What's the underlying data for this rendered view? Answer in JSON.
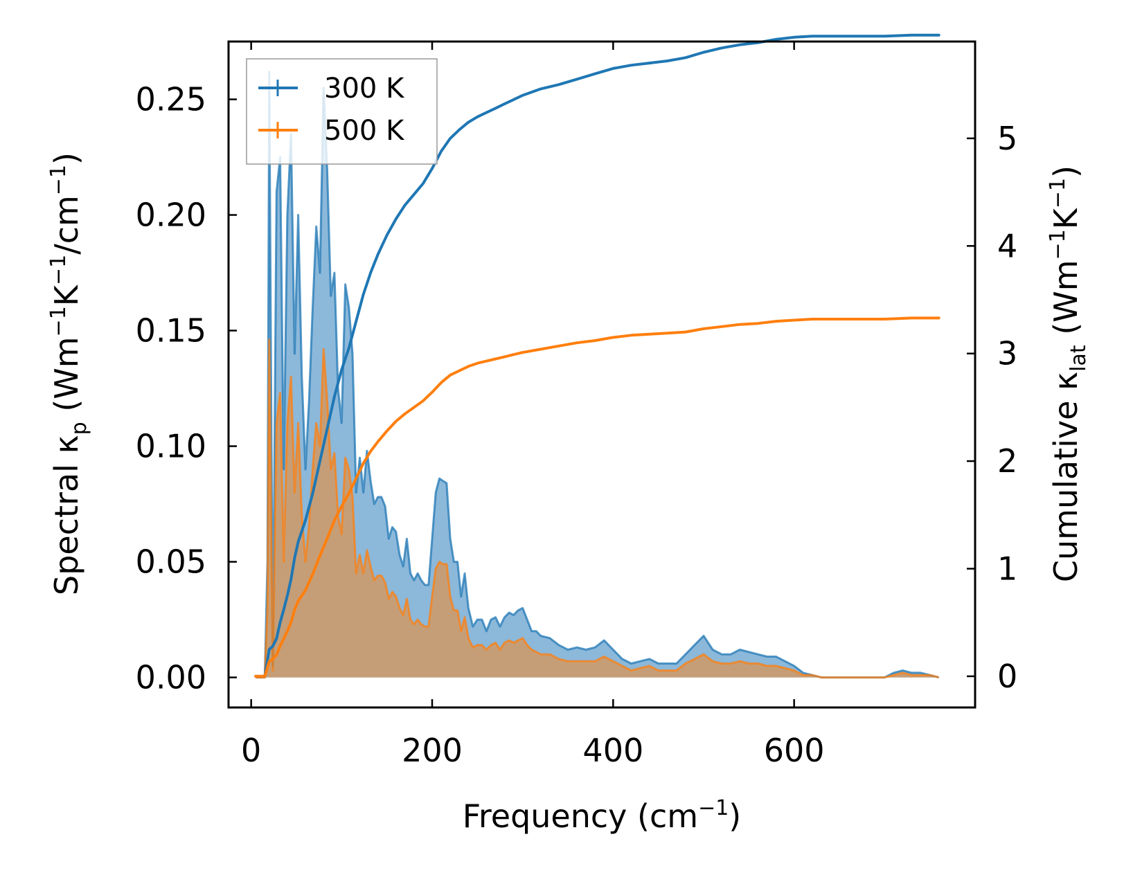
{
  "chart_data": {
    "type": "line",
    "title": "",
    "xlabel": "Frequency (cm⁻¹)",
    "ylabel_left": "Spectral κᵨ (Wm⁻¹K⁻¹/cm⁻¹)",
    "ylabel_right": "Cumulative κₗₐₜ (Wm⁻¹K⁻¹)",
    "xlim": [
      -25,
      800
    ],
    "ylim_left": [
      -0.013,
      0.275
    ],
    "ylim_right": [
      -0.29,
      5.9
    ],
    "x_ticks": [
      0,
      200,
      400,
      600
    ],
    "x_tick_labels": [
      "0",
      "200",
      "400",
      "600"
    ],
    "y_left_ticks": [
      0,
      0.05,
      0.1,
      0.15,
      0.2,
      0.25
    ],
    "y_left_tick_labels": [
      "0.00",
      "0.05",
      "0.10",
      "0.15",
      "0.20",
      "0.25"
    ],
    "y_right_ticks": [
      0,
      1,
      2,
      3,
      4,
      5
    ],
    "y_right_tick_labels": [
      "0",
      "1",
      "2",
      "3",
      "4",
      "5"
    ],
    "legend": {
      "position": "top-left",
      "entries": [
        "300 K",
        "500 K"
      ]
    },
    "colors": {
      "300 K": "#1f77b4",
      "500 K": "#ff7f0e",
      "fill_300": "#7fb0d6",
      "fill_500": "#c89c72"
    },
    "series": [
      {
        "name": "300 K",
        "axis": "left",
        "kind": "spectral",
        "x": [
          5,
          15,
          18,
          20,
          22,
          24,
          28,
          32,
          36,
          40,
          44,
          48,
          52,
          56,
          60,
          64,
          68,
          72,
          76,
          80,
          84,
          88,
          92,
          96,
          100,
          104,
          108,
          112,
          116,
          120,
          124,
          128,
          132,
          136,
          140,
          144,
          148,
          152,
          156,
          160,
          164,
          168,
          172,
          176,
          180,
          184,
          188,
          192,
          196,
          200,
          204,
          208,
          212,
          216,
          220,
          224,
          228,
          232,
          236,
          240,
          245,
          250,
          255,
          260,
          265,
          270,
          275,
          280,
          285,
          290,
          295,
          300,
          305,
          310,
          315,
          320,
          330,
          340,
          350,
          360,
          370,
          380,
          390,
          400,
          410,
          420,
          430,
          440,
          450,
          460,
          470,
          480,
          490,
          500,
          510,
          520,
          530,
          540,
          550,
          560,
          570,
          580,
          590,
          600,
          610,
          620,
          630,
          650,
          680,
          700,
          710,
          720,
          730,
          740,
          750,
          760
        ],
        "values": [
          0,
          0,
          0.05,
          0.262,
          0.13,
          0.005,
          0.21,
          0.225,
          0.09,
          0.2,
          0.235,
          0.14,
          0.2,
          0.13,
          0.09,
          0.12,
          0.16,
          0.195,
          0.175,
          0.255,
          0.22,
          0.165,
          0.175,
          0.125,
          0.11,
          0.17,
          0.16,
          0.14,
          0.08,
          0.095,
          0.08,
          0.098,
          0.085,
          0.075,
          0.078,
          0.078,
          0.074,
          0.06,
          0.065,
          0.063,
          0.053,
          0.048,
          0.06,
          0.045,
          0.042,
          0.045,
          0.042,
          0.04,
          0.04,
          0.06,
          0.08,
          0.086,
          0.085,
          0.084,
          0.06,
          0.05,
          0.05,
          0.035,
          0.045,
          0.03,
          0.022,
          0.025,
          0.025,
          0.02,
          0.025,
          0.026,
          0.022,
          0.026,
          0.028,
          0.027,
          0.029,
          0.03,
          0.025,
          0.02,
          0.02,
          0.018,
          0.017,
          0.014,
          0.012,
          0.013,
          0.012,
          0.013,
          0.016,
          0.012,
          0.008,
          0.006,
          0.007,
          0.008,
          0.006,
          0.006,
          0.006,
          0.01,
          0.014,
          0.018,
          0.012,
          0.01,
          0.01,
          0.012,
          0.011,
          0.01,
          0.009,
          0.009,
          0.007,
          0.005,
          0.002,
          0.001,
          0,
          0,
          0,
          0,
          0.002,
          0.003,
          0.002,
          0.002,
          0.001,
          0
        ]
      },
      {
        "name": "500 K",
        "axis": "left",
        "kind": "spectral",
        "x": [
          5,
          15,
          18,
          20,
          22,
          24,
          28,
          32,
          36,
          40,
          44,
          48,
          52,
          56,
          60,
          64,
          68,
          72,
          76,
          80,
          84,
          88,
          92,
          96,
          100,
          104,
          108,
          112,
          116,
          120,
          124,
          128,
          132,
          136,
          140,
          144,
          148,
          152,
          156,
          160,
          164,
          168,
          172,
          176,
          180,
          184,
          188,
          192,
          196,
          200,
          204,
          208,
          212,
          216,
          220,
          224,
          228,
          232,
          236,
          240,
          245,
          250,
          255,
          260,
          265,
          270,
          275,
          280,
          285,
          290,
          295,
          300,
          305,
          310,
          315,
          320,
          330,
          340,
          350,
          360,
          370,
          380,
          390,
          400,
          410,
          420,
          430,
          440,
          450,
          460,
          470,
          480,
          490,
          500,
          510,
          520,
          530,
          540,
          550,
          560,
          570,
          580,
          590,
          600,
          610,
          620,
          630,
          650,
          680,
          700,
          710,
          720,
          730,
          740,
          750,
          760
        ],
        "values": [
          0,
          0,
          0.03,
          0.146,
          0.07,
          0.003,
          0.11,
          0.123,
          0.05,
          0.11,
          0.13,
          0.08,
          0.11,
          0.07,
          0.05,
          0.066,
          0.09,
          0.11,
          0.1,
          0.142,
          0.12,
          0.09,
          0.097,
          0.07,
          0.062,
          0.095,
          0.09,
          0.078,
          0.045,
          0.053,
          0.045,
          0.055,
          0.048,
          0.042,
          0.044,
          0.044,
          0.041,
          0.034,
          0.037,
          0.035,
          0.03,
          0.027,
          0.034,
          0.025,
          0.023,
          0.025,
          0.023,
          0.022,
          0.022,
          0.035,
          0.047,
          0.05,
          0.049,
          0.049,
          0.035,
          0.029,
          0.029,
          0.02,
          0.026,
          0.017,
          0.013,
          0.014,
          0.014,
          0.012,
          0.014,
          0.015,
          0.012,
          0.015,
          0.016,
          0.015,
          0.016,
          0.017,
          0.014,
          0.012,
          0.011,
          0.01,
          0.01,
          0.008,
          0.007,
          0.007,
          0.007,
          0.007,
          0.009,
          0.007,
          0.005,
          0.003,
          0.004,
          0.005,
          0.003,
          0.003,
          0.003,
          0.006,
          0.008,
          0.01,
          0.007,
          0.006,
          0.006,
          0.007,
          0.006,
          0.006,
          0.005,
          0.005,
          0.004,
          0.003,
          0.001,
          0.001,
          0,
          0,
          0,
          0,
          0.001,
          0.002,
          0.001,
          0.001,
          0.001,
          0
        ]
      },
      {
        "name": "300 K",
        "axis": "right",
        "kind": "cumulative",
        "x": [
          5,
          15,
          20,
          24,
          28,
          32,
          36,
          40,
          44,
          48,
          52,
          60,
          68,
          76,
          84,
          92,
          100,
          108,
          116,
          124,
          132,
          140,
          150,
          160,
          170,
          180,
          190,
          200,
          210,
          220,
          230,
          240,
          250,
          260,
          270,
          280,
          290,
          300,
          320,
          340,
          360,
          380,
          400,
          420,
          440,
          460,
          480,
          500,
          520,
          540,
          560,
          580,
          600,
          620,
          650,
          680,
          700,
          730,
          760
        ],
        "values": [
          0,
          0,
          0.25,
          0.28,
          0.35,
          0.5,
          0.62,
          0.75,
          0.9,
          1.1,
          1.25,
          1.45,
          1.7,
          2.0,
          2.3,
          2.6,
          2.85,
          3.05,
          3.3,
          3.55,
          3.75,
          3.92,
          4.1,
          4.25,
          4.38,
          4.48,
          4.58,
          4.72,
          4.88,
          5.0,
          5.08,
          5.15,
          5.2,
          5.24,
          5.28,
          5.32,
          5.36,
          5.4,
          5.46,
          5.5,
          5.55,
          5.6,
          5.65,
          5.68,
          5.7,
          5.72,
          5.75,
          5.8,
          5.84,
          5.87,
          5.89,
          5.92,
          5.94,
          5.95,
          5.95,
          5.95,
          5.95,
          5.96,
          5.96
        ]
      },
      {
        "name": "500 K",
        "axis": "right",
        "kind": "cumulative",
        "x": [
          5,
          15,
          20,
          24,
          28,
          32,
          36,
          40,
          44,
          48,
          52,
          60,
          68,
          76,
          84,
          92,
          100,
          108,
          116,
          124,
          132,
          140,
          150,
          160,
          170,
          180,
          190,
          200,
          210,
          220,
          230,
          240,
          250,
          260,
          270,
          280,
          290,
          300,
          320,
          340,
          360,
          380,
          400,
          420,
          440,
          460,
          480,
          500,
          520,
          540,
          560,
          580,
          600,
          620,
          650,
          680,
          700,
          730,
          760
        ],
        "values": [
          0,
          0,
          0.14,
          0.16,
          0.2,
          0.28,
          0.35,
          0.42,
          0.5,
          0.62,
          0.7,
          0.8,
          0.95,
          1.12,
          1.28,
          1.45,
          1.58,
          1.7,
          1.84,
          1.98,
          2.09,
          2.18,
          2.28,
          2.37,
          2.44,
          2.5,
          2.56,
          2.64,
          2.73,
          2.8,
          2.84,
          2.88,
          2.91,
          2.93,
          2.95,
          2.97,
          2.99,
          3.01,
          3.04,
          3.07,
          3.1,
          3.12,
          3.15,
          3.17,
          3.18,
          3.19,
          3.2,
          3.23,
          3.25,
          3.27,
          3.28,
          3.3,
          3.31,
          3.32,
          3.32,
          3.32,
          3.32,
          3.33,
          3.33
        ]
      }
    ]
  }
}
